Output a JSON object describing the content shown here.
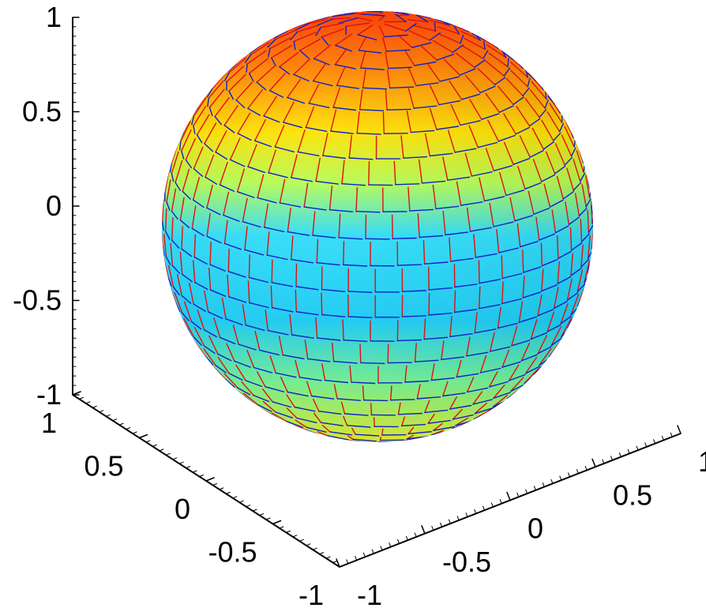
{
  "chart_data": {
    "type": "surface-quiver-3d",
    "title": "",
    "surface": "unit sphere",
    "colormap": "jet",
    "colormap_colors": [
      "#00a8ff",
      "#33d6ff",
      "#7fffcf",
      "#d7ff4a",
      "#ffe52a",
      "#ff8a10",
      "#ff4d00"
    ],
    "vector_series": [
      {
        "color": "#e01010"
      },
      {
        "color": "#1020c8"
      }
    ],
    "z_axis": {
      "range": [
        -1,
        1
      ],
      "ticks": [
        -1,
        -0.5,
        0,
        0.5,
        1
      ],
      "tick_labels": [
        "-1",
        "-0.5",
        "0",
        "0.5",
        "1"
      ]
    },
    "y_axis": {
      "range": [
        -1,
        1
      ],
      "ticks": [
        1,
        0.5,
        0,
        -0.5,
        -1
      ],
      "tick_labels": [
        "1",
        "0.5",
        "0",
        "-0.5",
        "-1"
      ]
    },
    "x_axis": {
      "range": [
        -1,
        1
      ],
      "ticks": [
        -1,
        -0.5,
        0,
        0.5,
        1
      ],
      "tick_labels": [
        "-1",
        "-0.5",
        "0",
        "0.5",
        "1"
      ]
    },
    "grid": false
  }
}
